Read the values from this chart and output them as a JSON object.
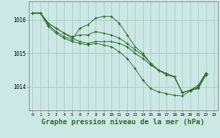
{
  "background_color": "#cce8e4",
  "grid_color": "#aaccca",
  "line_color": "#2d6a2d",
  "xlabel": "Graphe pression niveau de la mer (hPa)",
  "xlabel_fontsize": 7.5,
  "ytick_labels": [
    "1014",
    "1015",
    "1016"
  ],
  "yticks": [
    1014,
    1015,
    1016
  ],
  "xticks": [
    0,
    1,
    2,
    3,
    4,
    5,
    6,
    7,
    8,
    9,
    10,
    11,
    12,
    13,
    14,
    15,
    16,
    17,
    18,
    19,
    20,
    21,
    22,
    23
  ],
  "ylim": [
    1013.3,
    1016.55
  ],
  "xlim": [
    -0.5,
    23.5
  ],
  "series": [
    [
      1016.2,
      1016.2,
      1015.9,
      1015.75,
      1015.6,
      1015.45,
      1015.35,
      1015.3,
      1015.35,
      1015.35,
      1015.35,
      1015.3,
      1015.2,
      1015.0,
      1014.85,
      1014.65,
      1014.5,
      1014.4,
      1014.3,
      1013.83,
      1013.9,
      1013.95,
      1014.35,
      null
    ],
    [
      1016.2,
      1016.2,
      1015.9,
      1015.75,
      1015.6,
      1015.5,
      1015.55,
      1015.55,
      1015.65,
      1015.6,
      1015.55,
      1015.45,
      1015.3,
      1015.1,
      1014.95,
      1014.7,
      1014.5,
      1014.4,
      1014.3,
      1013.83,
      1013.9,
      1014.0,
      1014.38,
      null
    ],
    [
      1016.2,
      1016.2,
      1015.85,
      1015.65,
      1015.5,
      1015.4,
      1015.75,
      1015.85,
      1016.05,
      1016.1,
      1016.1,
      1015.9,
      1015.55,
      1015.2,
      1015.0,
      1014.7,
      1014.5,
      1014.35,
      1014.3,
      1013.83,
      1013.9,
      1014.05,
      1014.42,
      null
    ],
    [
      1016.2,
      1016.2,
      1015.8,
      1015.6,
      1015.45,
      1015.35,
      1015.3,
      1015.25,
      1015.3,
      1015.25,
      1015.2,
      1015.05,
      1014.85,
      1014.55,
      1014.2,
      1013.95,
      1013.85,
      1013.8,
      1013.75,
      1013.73,
      1013.88,
      1013.97,
      1014.4,
      null
    ]
  ]
}
